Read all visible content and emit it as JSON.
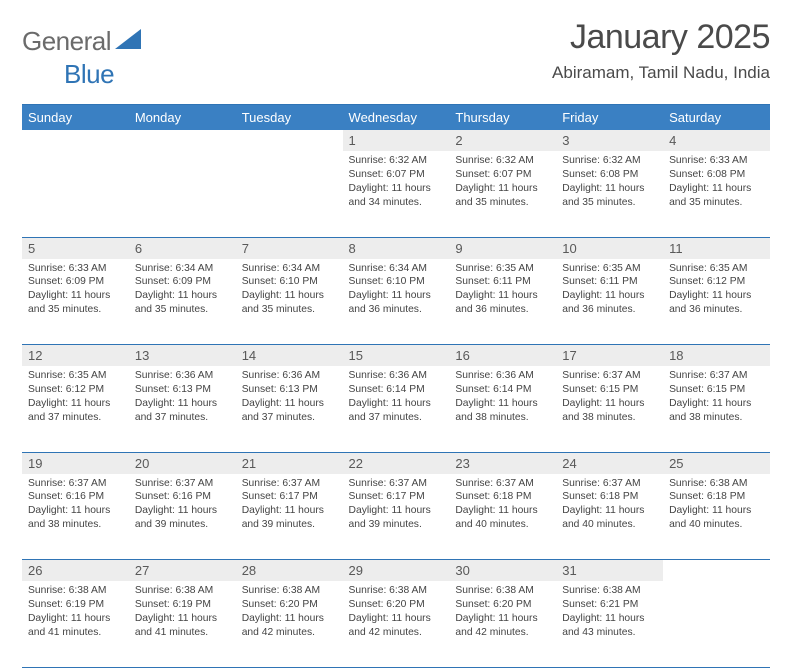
{
  "brand": {
    "text1": "General",
    "text2": "Blue"
  },
  "title": "January 2025",
  "location": "Abiramam, Tamil Nadu, India",
  "header_bg": "#3a80c3",
  "rule_color": "#2f74b5",
  "daynum_bg": "#ededed",
  "text_color": "#3a3a3a",
  "font_size_cell": 10.3,
  "day_names": [
    "Sunday",
    "Monday",
    "Tuesday",
    "Wednesday",
    "Thursday",
    "Friday",
    "Saturday"
  ],
  "weeks": [
    [
      null,
      null,
      null,
      {
        "n": "1",
        "sr": "6:32 AM",
        "ss": "6:07 PM",
        "dl": "11 hours and 34 minutes."
      },
      {
        "n": "2",
        "sr": "6:32 AM",
        "ss": "6:07 PM",
        "dl": "11 hours and 35 minutes."
      },
      {
        "n": "3",
        "sr": "6:32 AM",
        "ss": "6:08 PM",
        "dl": "11 hours and 35 minutes."
      },
      {
        "n": "4",
        "sr": "6:33 AM",
        "ss": "6:08 PM",
        "dl": "11 hours and 35 minutes."
      }
    ],
    [
      {
        "n": "5",
        "sr": "6:33 AM",
        "ss": "6:09 PM",
        "dl": "11 hours and 35 minutes."
      },
      {
        "n": "6",
        "sr": "6:34 AM",
        "ss": "6:09 PM",
        "dl": "11 hours and 35 minutes."
      },
      {
        "n": "7",
        "sr": "6:34 AM",
        "ss": "6:10 PM",
        "dl": "11 hours and 35 minutes."
      },
      {
        "n": "8",
        "sr": "6:34 AM",
        "ss": "6:10 PM",
        "dl": "11 hours and 36 minutes."
      },
      {
        "n": "9",
        "sr": "6:35 AM",
        "ss": "6:11 PM",
        "dl": "11 hours and 36 minutes."
      },
      {
        "n": "10",
        "sr": "6:35 AM",
        "ss": "6:11 PM",
        "dl": "11 hours and 36 minutes."
      },
      {
        "n": "11",
        "sr": "6:35 AM",
        "ss": "6:12 PM",
        "dl": "11 hours and 36 minutes."
      }
    ],
    [
      {
        "n": "12",
        "sr": "6:35 AM",
        "ss": "6:12 PM",
        "dl": "11 hours and 37 minutes."
      },
      {
        "n": "13",
        "sr": "6:36 AM",
        "ss": "6:13 PM",
        "dl": "11 hours and 37 minutes."
      },
      {
        "n": "14",
        "sr": "6:36 AM",
        "ss": "6:13 PM",
        "dl": "11 hours and 37 minutes."
      },
      {
        "n": "15",
        "sr": "6:36 AM",
        "ss": "6:14 PM",
        "dl": "11 hours and 37 minutes."
      },
      {
        "n": "16",
        "sr": "6:36 AM",
        "ss": "6:14 PM",
        "dl": "11 hours and 38 minutes."
      },
      {
        "n": "17",
        "sr": "6:37 AM",
        "ss": "6:15 PM",
        "dl": "11 hours and 38 minutes."
      },
      {
        "n": "18",
        "sr": "6:37 AM",
        "ss": "6:15 PM",
        "dl": "11 hours and 38 minutes."
      }
    ],
    [
      {
        "n": "19",
        "sr": "6:37 AM",
        "ss": "6:16 PM",
        "dl": "11 hours and 38 minutes."
      },
      {
        "n": "20",
        "sr": "6:37 AM",
        "ss": "6:16 PM",
        "dl": "11 hours and 39 minutes."
      },
      {
        "n": "21",
        "sr": "6:37 AM",
        "ss": "6:17 PM",
        "dl": "11 hours and 39 minutes."
      },
      {
        "n": "22",
        "sr": "6:37 AM",
        "ss": "6:17 PM",
        "dl": "11 hours and 39 minutes."
      },
      {
        "n": "23",
        "sr": "6:37 AM",
        "ss": "6:18 PM",
        "dl": "11 hours and 40 minutes."
      },
      {
        "n": "24",
        "sr": "6:37 AM",
        "ss": "6:18 PM",
        "dl": "11 hours and 40 minutes."
      },
      {
        "n": "25",
        "sr": "6:38 AM",
        "ss": "6:18 PM",
        "dl": "11 hours and 40 minutes."
      }
    ],
    [
      {
        "n": "26",
        "sr": "6:38 AM",
        "ss": "6:19 PM",
        "dl": "11 hours and 41 minutes."
      },
      {
        "n": "27",
        "sr": "6:38 AM",
        "ss": "6:19 PM",
        "dl": "11 hours and 41 minutes."
      },
      {
        "n": "28",
        "sr": "6:38 AM",
        "ss": "6:20 PM",
        "dl": "11 hours and 42 minutes."
      },
      {
        "n": "29",
        "sr": "6:38 AM",
        "ss": "6:20 PM",
        "dl": "11 hours and 42 minutes."
      },
      {
        "n": "30",
        "sr": "6:38 AM",
        "ss": "6:20 PM",
        "dl": "11 hours and 42 minutes."
      },
      {
        "n": "31",
        "sr": "6:38 AM",
        "ss": "6:21 PM",
        "dl": "11 hours and 43 minutes."
      },
      null
    ]
  ],
  "labels": {
    "sunrise": "Sunrise:",
    "sunset": "Sunset:",
    "daylight": "Daylight:"
  }
}
